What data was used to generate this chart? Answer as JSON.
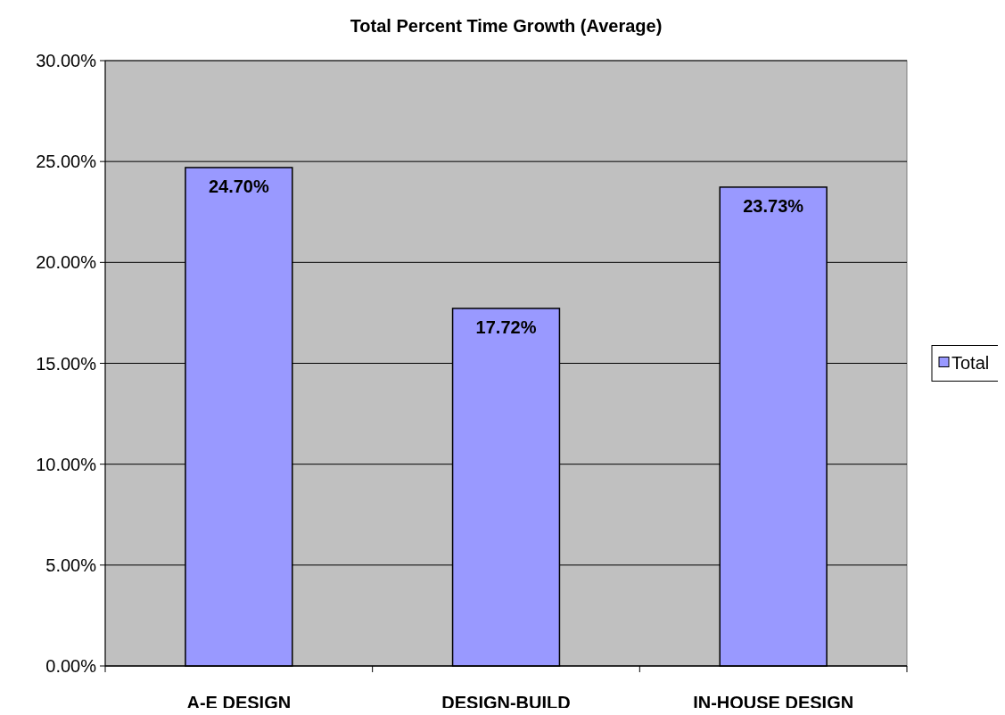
{
  "chart_data": {
    "type": "bar",
    "title": "Total Percent Time Growth (Average)",
    "categories": [
      "A-E DESIGN",
      "DESIGN-BUILD",
      "IN-HOUSE DESIGN"
    ],
    "series": [
      {
        "name": "Total",
        "color": "#9999ff",
        "values": [
          24.7,
          17.72,
          23.73
        ],
        "value_labels": [
          "24.70%",
          "17.72%",
          "23.73%"
        ]
      }
    ],
    "ylim": [
      0,
      30
    ],
    "yticks": [
      {
        "value": 0,
        "label": "0.00%"
      },
      {
        "value": 5,
        "label": "5.00%"
      },
      {
        "value": 10,
        "label": "10.00%"
      },
      {
        "value": 15,
        "label": "15.00%"
      },
      {
        "value": 20,
        "label": "20.00%"
      },
      {
        "value": 25,
        "label": "25.00%"
      },
      {
        "value": 30,
        "label": "30.00%"
      }
    ],
    "grid": "y",
    "legend": "right"
  }
}
